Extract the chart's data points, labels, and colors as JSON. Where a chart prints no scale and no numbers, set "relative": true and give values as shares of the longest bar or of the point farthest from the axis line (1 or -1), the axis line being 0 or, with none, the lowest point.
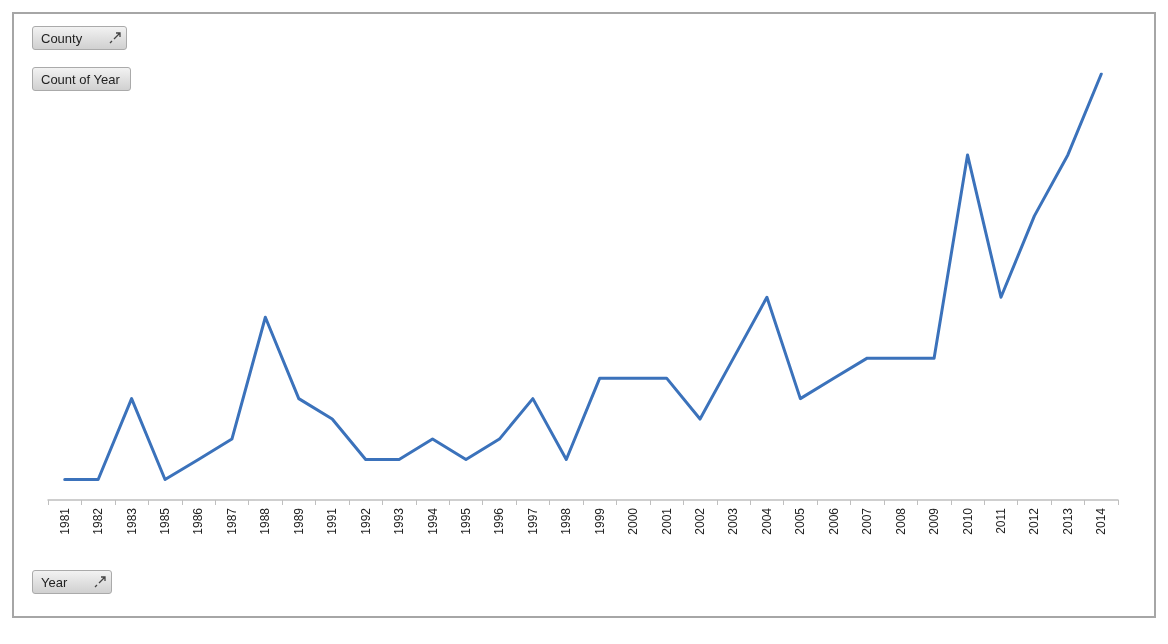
{
  "chart_data": {
    "type": "line",
    "relative": true,
    "categories": [
      "1981",
      "1982",
      "1983",
      "1985",
      "1986",
      "1987",
      "1988",
      "1989",
      "1991",
      "1992",
      "1993",
      "1994",
      "1995",
      "1996",
      "1997",
      "1998",
      "1999",
      "2000",
      "2001",
      "2002",
      "2003",
      "2004",
      "2005",
      "2006",
      "2007",
      "2008",
      "2009",
      "2010",
      "2011",
      "2012",
      "2013",
      "2014"
    ],
    "series": [
      {
        "color": "#3b72bb",
        "values": [
          0.048,
          0.048,
          0.238,
          0.048,
          0.095,
          0.143,
          0.429,
          0.238,
          0.19,
          0.095,
          0.095,
          0.143,
          0.095,
          0.143,
          0.238,
          0.095,
          0.286,
          0.286,
          0.286,
          0.19,
          0.333,
          0.476,
          0.238,
          0.286,
          0.333,
          0.333,
          0.333,
          0.81,
          0.476,
          0.667,
          0.81,
          1
        ]
      }
    ],
    "annotations": [
      "County",
      "Count of Year",
      "Year"
    ],
    "grid": false
  }
}
